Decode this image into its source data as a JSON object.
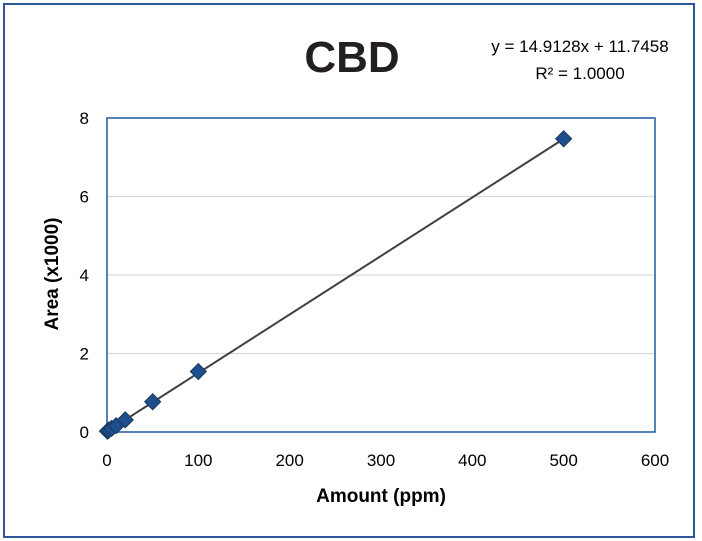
{
  "chart_data": {
    "type": "scatter",
    "title": "CBD",
    "xlabel": "Amount (ppm)",
    "ylabel": "Area (x1000)",
    "xlim": [
      0,
      600
    ],
    "ylim": [
      0,
      8
    ],
    "xticks": [
      "0",
      "100",
      "200",
      "300",
      "400",
      "500",
      "600"
    ],
    "yticks": [
      "0",
      "2",
      "4",
      "6",
      "8"
    ],
    "grid": "horizontal",
    "series": [
      {
        "x": [
          0.5,
          1,
          2,
          5,
          10,
          20,
          50,
          100,
          500
        ],
        "y": [
          0.02,
          0.03,
          0.05,
          0.09,
          0.16,
          0.31,
          0.77,
          1.54,
          7.47
        ]
      }
    ],
    "trendline": {
      "type": "linear",
      "equation": "y = 14.9128x + 11.7458",
      "r_squared": "R² = 1.0000",
      "from": [
        0,
        0.012
      ],
      "to": [
        500,
        7.468
      ]
    },
    "colors": {
      "marker": "#1f4e8c",
      "trendline": "#404040",
      "frame": "#2f5597",
      "plot_border": "#1f5a9e",
      "grid": "#d9d9d9"
    }
  }
}
